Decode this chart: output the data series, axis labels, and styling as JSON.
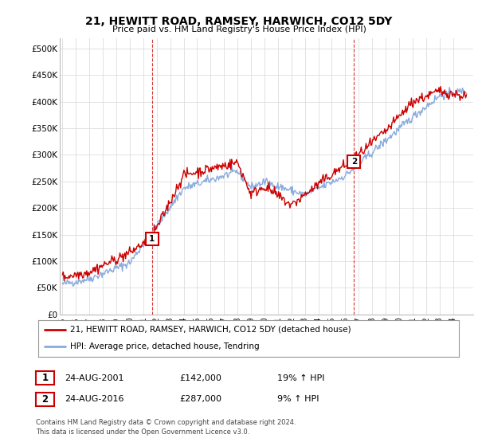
{
  "title": "21, HEWITT ROAD, RAMSEY, HARWICH, CO12 5DY",
  "subtitle": "Price paid vs. HM Land Registry's House Price Index (HPI)",
  "ylabel_ticks": [
    "£0",
    "£50K",
    "£100K",
    "£150K",
    "£200K",
    "£250K",
    "£300K",
    "£350K",
    "£400K",
    "£450K",
    "£500K"
  ],
  "ytick_values": [
    0,
    50000,
    100000,
    150000,
    200000,
    250000,
    300000,
    350000,
    400000,
    450000,
    500000
  ],
  "ylim": [
    0,
    520000
  ],
  "xlim_start": 1994.8,
  "xlim_end": 2025.5,
  "line_color_house": "#cc0000",
  "line_color_hpi": "#88aadd",
  "marker1_x": 2001.65,
  "marker1_y": 142000,
  "marker2_x": 2016.65,
  "marker2_y": 287000,
  "marker1_label": "1",
  "marker2_label": "2",
  "legend_line1": "21, HEWITT ROAD, RAMSEY, HARWICH, CO12 5DY (detached house)",
  "legend_line2": "HPI: Average price, detached house, Tendring",
  "table_row1": [
    "1",
    "24-AUG-2001",
    "£142,000",
    "19% ↑ HPI"
  ],
  "table_row2": [
    "2",
    "24-AUG-2016",
    "£287,000",
    "9% ↑ HPI"
  ],
  "footer": "Contains HM Land Registry data © Crown copyright and database right 2024.\nThis data is licensed under the Open Government Licence v3.0.",
  "background_color": "#ffffff",
  "grid_color": "#dddddd",
  "title_fontsize": 10,
  "subtitle_fontsize": 8
}
